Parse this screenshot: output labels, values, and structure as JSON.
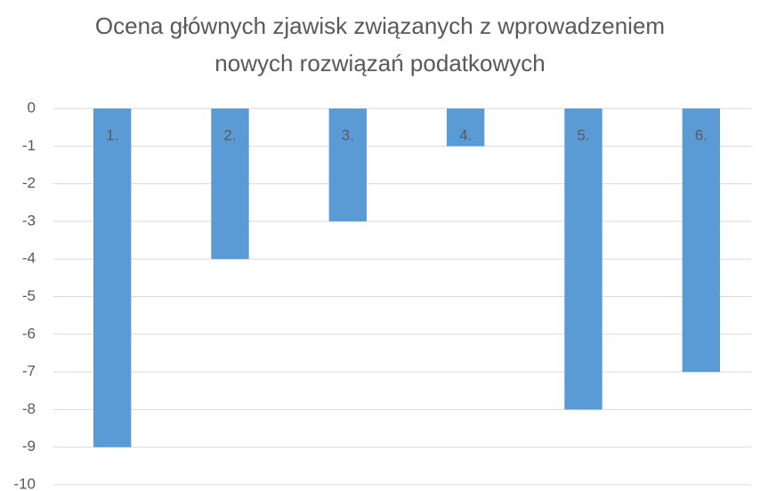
{
  "chart_data": {
    "type": "bar",
    "title": "Ocena głównych zjawisk związanych z wprowadzeniem nowych rozwiązań podatkowych",
    "categories": [
      "1.",
      "2.",
      "3.",
      "4.",
      "5.",
      "6."
    ],
    "values": [
      -9,
      -4,
      -3,
      -1,
      -8,
      -7
    ],
    "color": "#5b9bd5",
    "ylim": [
      -10,
      0
    ],
    "yticks": [
      0,
      -1,
      -2,
      -3,
      -4,
      -5,
      -6,
      -7,
      -8,
      -9,
      -10
    ],
    "grid": true
  }
}
